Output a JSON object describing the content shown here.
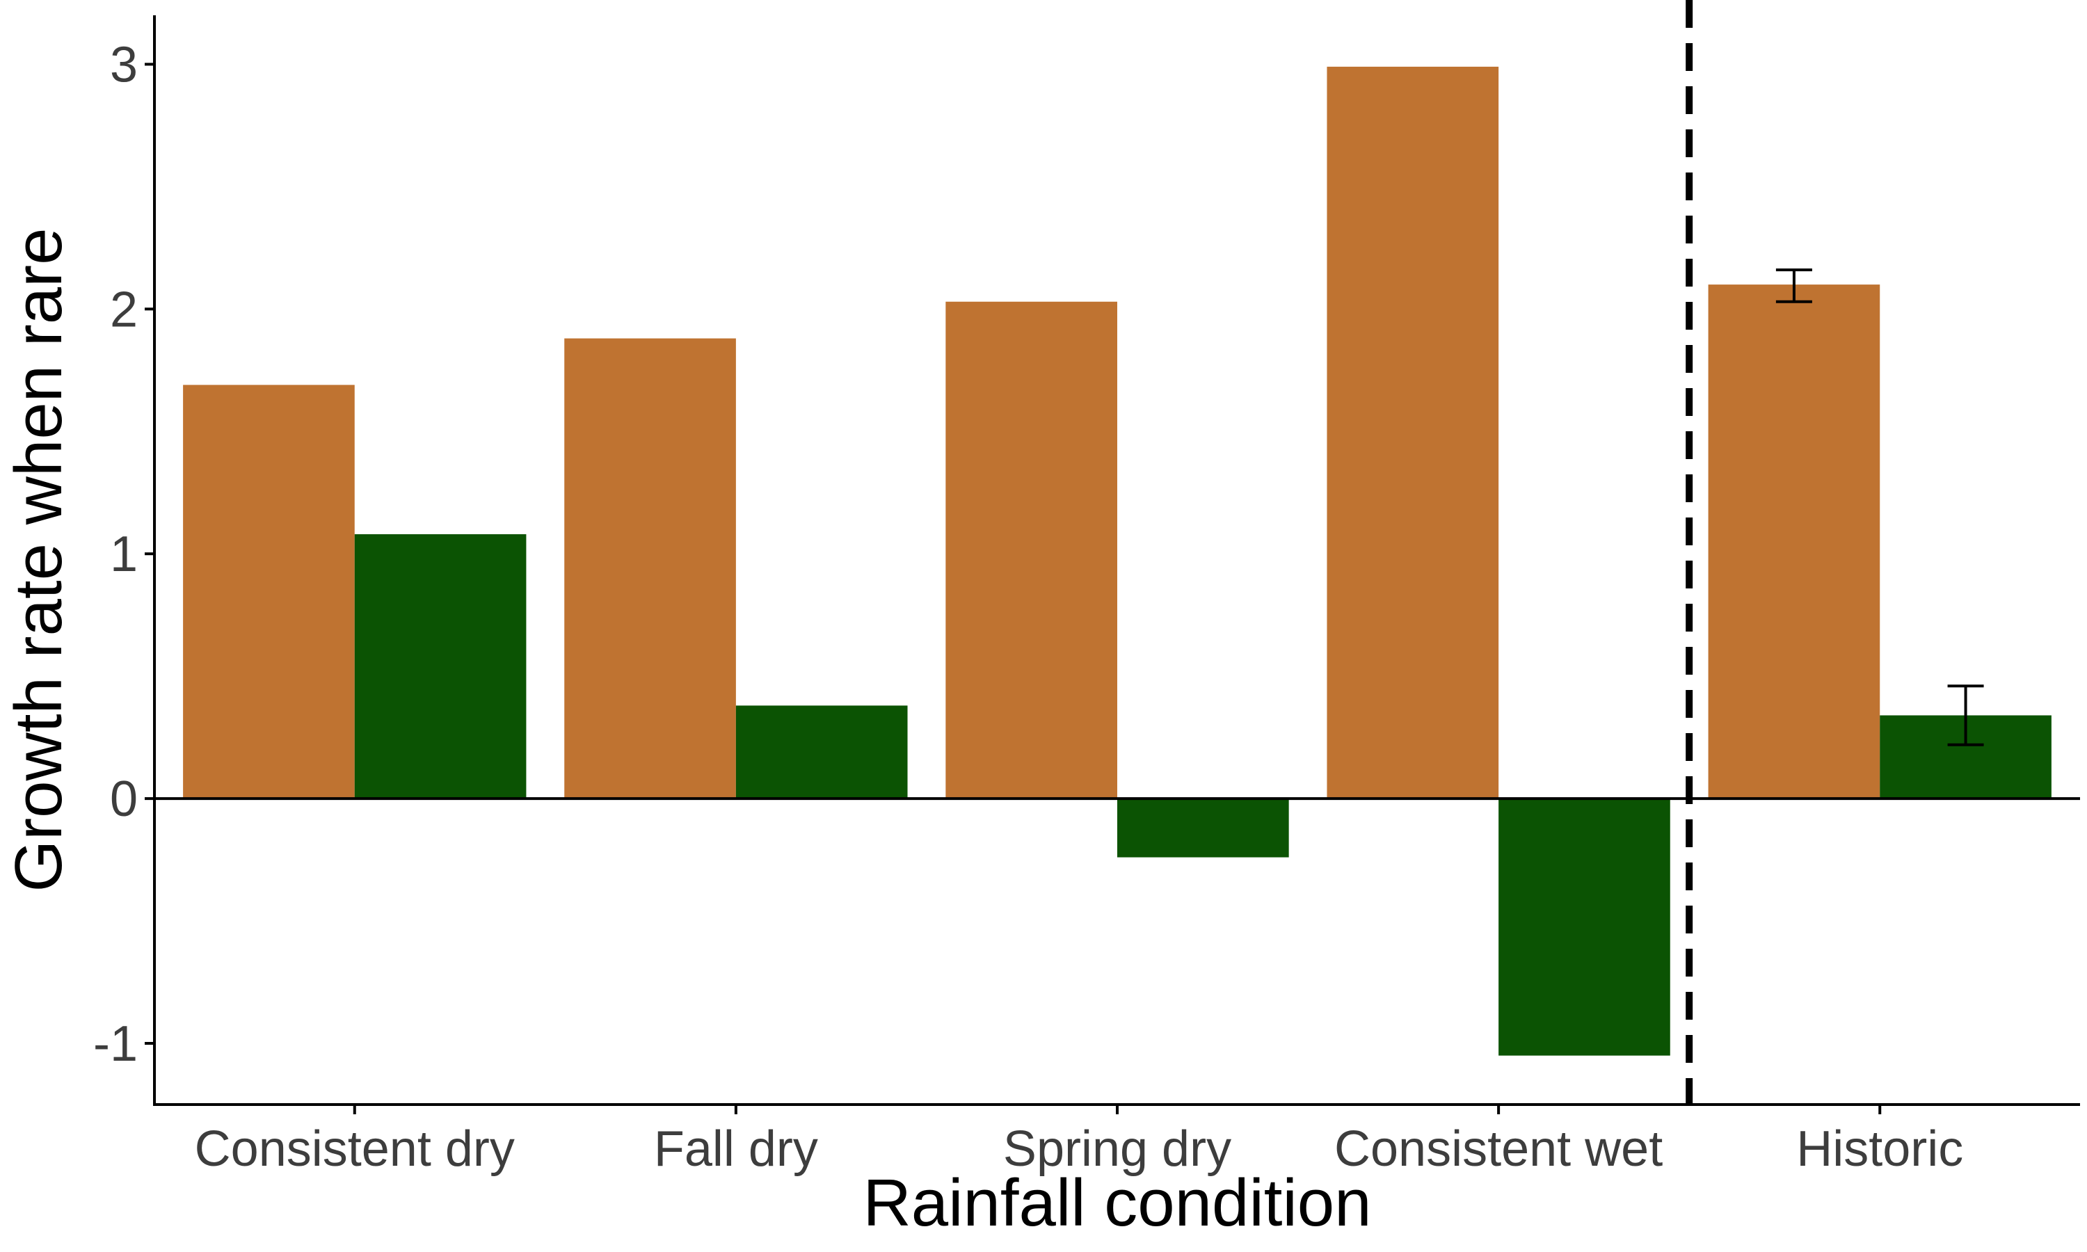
{
  "chart_data": {
    "type": "bar",
    "title": "",
    "xlabel": "Rainfall condition",
    "ylabel": "Growth rate when rare",
    "categories": [
      "Consistent dry",
      "Fall dry",
      "Spring dry",
      "Consistent wet",
      "Historic"
    ],
    "series": [
      {
        "color": "#BF7331",
        "values": [
          1.69,
          1.88,
          2.03,
          2.99,
          2.1
        ],
        "error_low": [
          null,
          null,
          null,
          null,
          2.03
        ],
        "error_high": [
          null,
          null,
          null,
          null,
          2.16
        ]
      },
      {
        "color": "#0B5303",
        "values": [
          1.08,
          0.38,
          -0.24,
          -1.05,
          0.34
        ],
        "error_low": [
          null,
          null,
          null,
          null,
          0.22
        ],
        "error_high": [
          null,
          null,
          null,
          null,
          0.46
        ]
      }
    ],
    "ylim": [
      -1.25,
      3.2
    ],
    "yticks": [
      -1,
      0,
      1,
      2,
      3
    ],
    "ytick_labels": [
      "-1",
      "0",
      "1",
      "2",
      "3"
    ],
    "zero_line": true,
    "separator": {
      "style": "dashed",
      "between": [
        "Consistent wet",
        "Historic"
      ]
    },
    "grid": false,
    "legend": "none"
  }
}
